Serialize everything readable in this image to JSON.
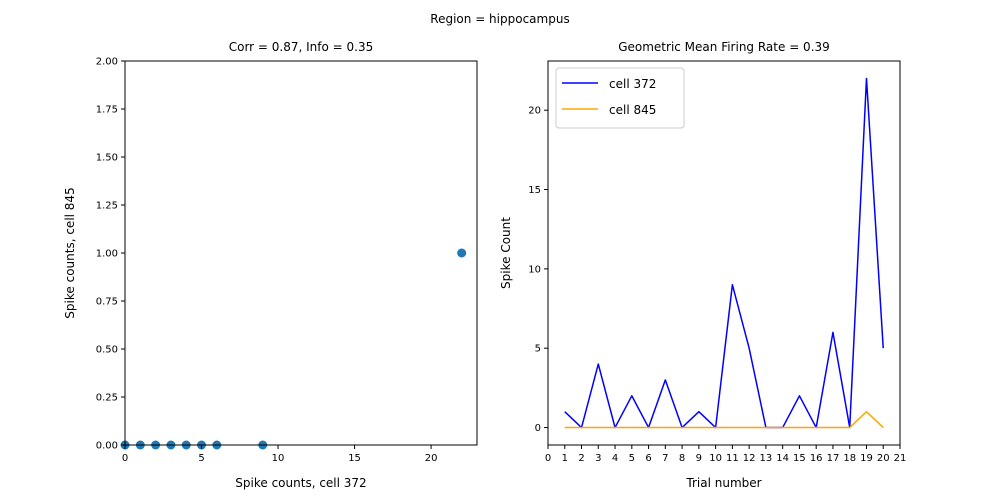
{
  "figure": {
    "suptitle": "Region = hippocampus"
  },
  "chart_data": [
    {
      "type": "scatter",
      "title": "Corr = 0.87, Info = 0.35",
      "xlabel": "Spike counts, cell 372",
      "ylabel": "Spike counts, cell 845",
      "xlim": [
        0,
        23
      ],
      "ylim": [
        0,
        2
      ],
      "xticks": [
        0,
        5,
        10,
        15,
        20
      ],
      "yticks": [
        "0.00",
        "0.25",
        "0.50",
        "0.75",
        "1.00",
        "1.25",
        "1.50",
        "1.75",
        "2.00"
      ],
      "color": "#1f77b4",
      "points": [
        {
          "x": 0,
          "y": 0
        },
        {
          "x": 1,
          "y": 0
        },
        {
          "x": 2,
          "y": 0
        },
        {
          "x": 3,
          "y": 0
        },
        {
          "x": 4,
          "y": 0
        },
        {
          "x": 5,
          "y": 0
        },
        {
          "x": 6,
          "y": 0
        },
        {
          "x": 9,
          "y": 0
        },
        {
          "x": 22,
          "y": 1
        }
      ]
    },
    {
      "type": "line",
      "title": "Geometric Mean Firing Rate = 0.39",
      "xlabel": "Trial number",
      "ylabel": "Spike Count",
      "xlim": [
        0,
        21
      ],
      "ylim": [
        -1.1,
        23.1
      ],
      "xticks": [
        0,
        1,
        2,
        3,
        4,
        5,
        6,
        7,
        8,
        9,
        10,
        11,
        12,
        13,
        14,
        15,
        16,
        17,
        18,
        19,
        20,
        21
      ],
      "yticks": [
        0,
        5,
        10,
        15,
        20
      ],
      "legend_position": "top-left",
      "x": [
        1,
        2,
        3,
        4,
        5,
        6,
        7,
        8,
        9,
        10,
        11,
        12,
        13,
        14,
        15,
        16,
        17,
        18,
        19,
        20
      ],
      "series": [
        {
          "name": "cell 372",
          "color": "#0000ff",
          "values": [
            1,
            0,
            4,
            0,
            2,
            0,
            3,
            0,
            1,
            0,
            9,
            5,
            0,
            0,
            2,
            0,
            6,
            0,
            22,
            5
          ]
        },
        {
          "name": "cell 845",
          "color": "#ffa500",
          "values": [
            0,
            0,
            0,
            0,
            0,
            0,
            0,
            0,
            0,
            0,
            0,
            0,
            0,
            0,
            0,
            0,
            0,
            0,
            1,
            0
          ]
        }
      ]
    }
  ]
}
